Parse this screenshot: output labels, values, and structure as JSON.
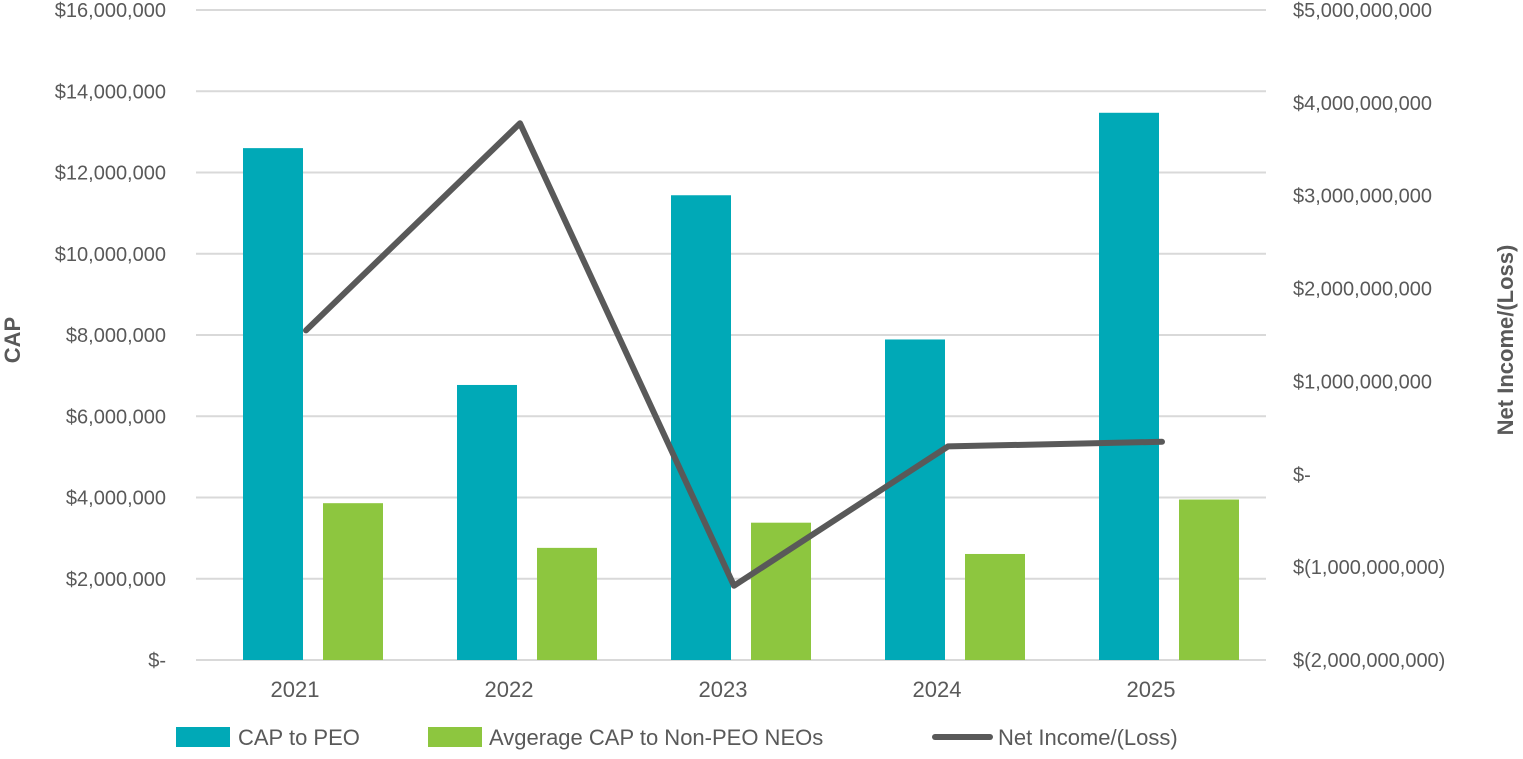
{
  "chart_data": {
    "type": "bar",
    "categories": [
      "2021",
      "2022",
      "2023",
      "2024",
      "2025"
    ],
    "series": [
      {
        "name": "CAP to PEO",
        "type": "bar",
        "axis": "left",
        "color": "#00A9B7",
        "values": [
          12600000,
          6770000,
          11440000,
          7890000,
          13470000
        ]
      },
      {
        "name": "Avgerage CAP to Non-PEO NEOs",
        "type": "bar",
        "axis": "left",
        "color": "#8DC63F",
        "values": [
          3860000,
          2760000,
          3380000,
          2610000,
          3950000
        ]
      },
      {
        "name": "Net Income/(Loss)",
        "type": "line",
        "axis": "right",
        "color": "#595959",
        "values": [
          1550000000,
          3780000000,
          -1200000000,
          300000000,
          350000000
        ]
      }
    ],
    "y_left": {
      "label": "CAP",
      "min": 0,
      "max": 16000000,
      "ticks": [
        {
          "value": 0,
          "label": "$-"
        },
        {
          "value": 2000000,
          "label": "$2,000,000"
        },
        {
          "value": 4000000,
          "label": "$4,000,000"
        },
        {
          "value": 6000000,
          "label": "$6,000,000"
        },
        {
          "value": 8000000,
          "label": "$8,000,000"
        },
        {
          "value": 10000000,
          "label": "$10,000,000"
        },
        {
          "value": 12000000,
          "label": "$12,000,000"
        },
        {
          "value": 14000000,
          "label": "$14,000,000"
        },
        {
          "value": 16000000,
          "label": "$16,000,000"
        }
      ]
    },
    "y_right": {
      "label": "Net Income/(Loss)",
      "min": -2000000000,
      "max": 5000000000,
      "ticks": [
        {
          "value": -2000000000,
          "label": "$(2,000,000,000)"
        },
        {
          "value": -1000000000,
          "label": "$(1,000,000,000)"
        },
        {
          "value": 0,
          "label": "$-"
        },
        {
          "value": 1000000000,
          "label": "$1,000,000,000"
        },
        {
          "value": 2000000000,
          "label": "$2,000,000,000"
        },
        {
          "value": 3000000000,
          "label": "$3,000,000,000"
        },
        {
          "value": 4000000000,
          "label": "$4,000,000,000"
        },
        {
          "value": 5000000000,
          "label": "$5,000,000,000"
        }
      ]
    },
    "grid": true,
    "legend": "bottom",
    "colors": {
      "grid": "#D9D9D9",
      "text": "#595959"
    }
  }
}
